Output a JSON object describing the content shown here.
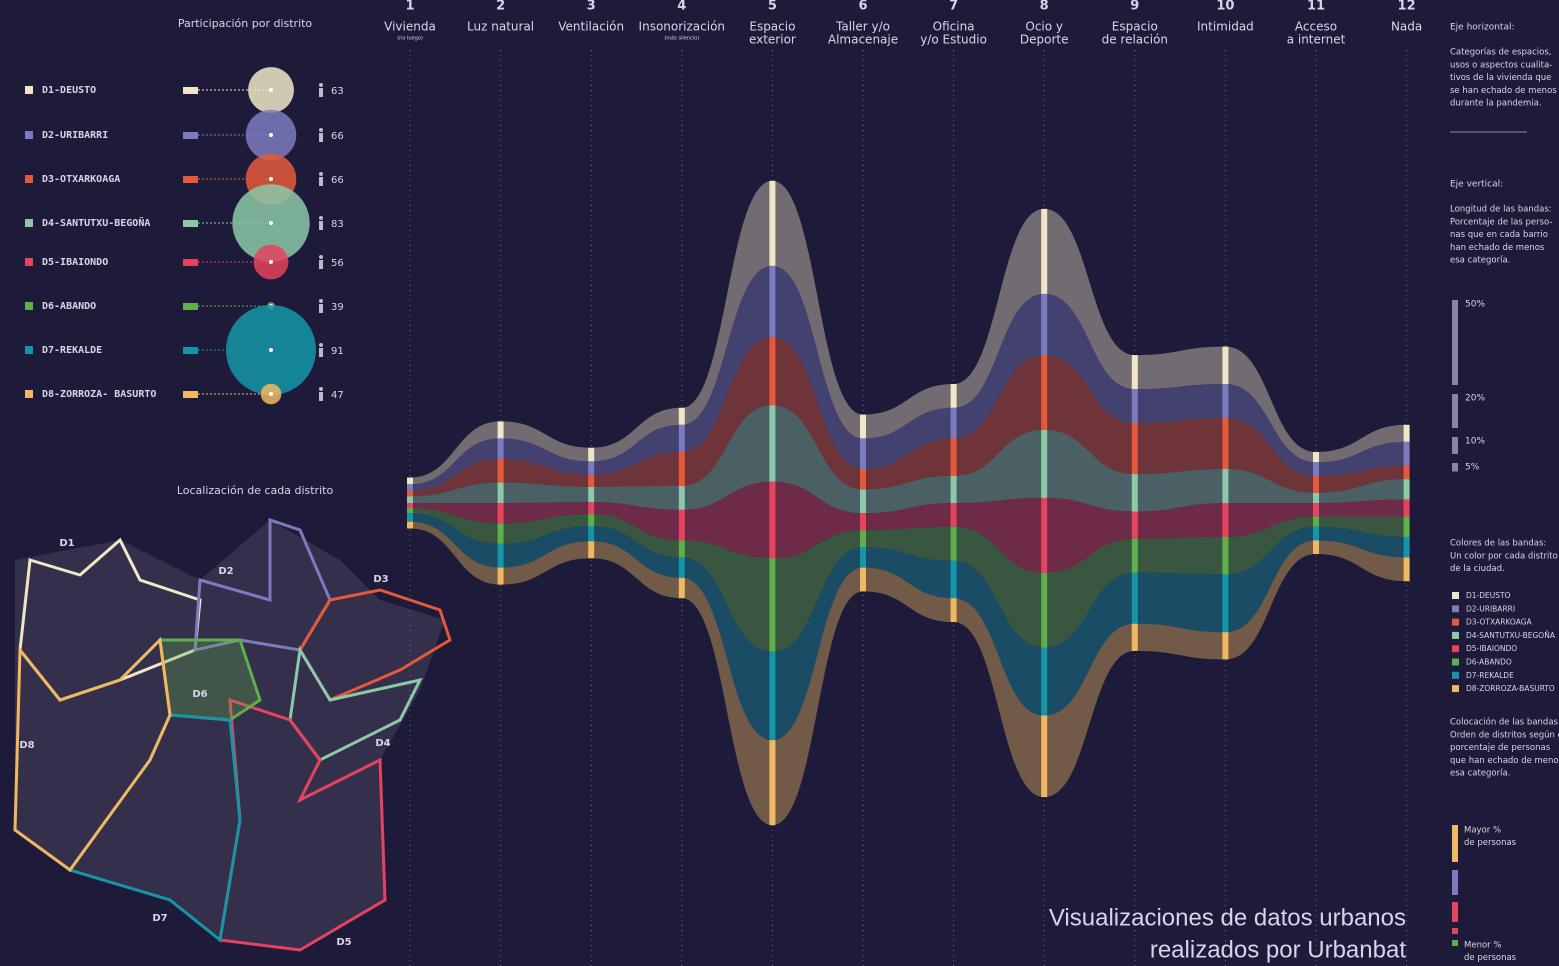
{
  "chart_data": [
    {
      "type": "bubble-list",
      "title": "Participación por distrito",
      "categories": [
        "D1-DEUSTO",
        "D2-URIBARRI",
        "D3-OTXARKOAGA",
        "D4-SANTUTXU-BEGOÑA",
        "D5-IBAIONDO",
        "D6-ABANDO",
        "D7-REKALDE",
        "D8-ZORROZA- BASURTO"
      ],
      "values": [
        63,
        66,
        66,
        83,
        56,
        39,
        91,
        47
      ],
      "colors": [
        "#f1e6c8",
        "#7b7bc0",
        "#e5593a",
        "#8dc9a8",
        "#e5435e",
        "#5fb04b",
        "#1596a8",
        "#f0b860"
      ]
    },
    {
      "type": "band",
      "column_numbers": [
        1,
        2,
        3,
        4,
        5,
        6,
        7,
        8,
        9,
        10,
        11,
        12
      ],
      "categories": [
        [
          "Vivienda"
        ],
        [
          "Luz natural"
        ],
        [
          "Ventilación"
        ],
        [
          "Insonorización"
        ],
        [
          "Espacio",
          "exterior"
        ],
        [
          "Taller y/o",
          "Almacenaje"
        ],
        [
          "Oficina",
          "y/o Estudio"
        ],
        [
          "Ocio y",
          "Deporte"
        ],
        [
          "Espacio",
          "de relación"
        ],
        [
          "Intimidad"
        ],
        [
          "Acceso",
          "a internet"
        ],
        [
          "Nada"
        ]
      ],
      "category_notes": [
        "(no luego)",
        null,
        null,
        "(más silencio)",
        null,
        null,
        null,
        null,
        null,
        null,
        null,
        null
      ],
      "series": [
        {
          "name": "D1-DEUSTO",
          "color": "#f1e6c8",
          "values": [
            4,
            10,
            8,
            10,
            50,
            14,
            14,
            50,
            20,
            22,
            6,
            10
          ]
        },
        {
          "name": "D2-URIBARRI",
          "color": "#7b7bc0",
          "values": [
            4,
            12,
            8,
            16,
            42,
            18,
            18,
            36,
            20,
            20,
            8,
            14
          ]
        },
        {
          "name": "D3-OTXARKOAGA",
          "color": "#e5593a",
          "values": [
            3,
            14,
            7,
            20,
            40,
            12,
            22,
            44,
            30,
            30,
            10,
            8
          ]
        },
        {
          "name": "D4-SANTUTXU-BEGOÑA",
          "color": "#8dc9a8",
          "values": [
            4,
            12,
            9,
            14,
            45,
            14,
            16,
            40,
            22,
            20,
            6,
            12
          ]
        },
        {
          "name": "D5-IBAIONDO",
          "color": "#e5435e",
          "values": [
            3,
            12,
            7,
            18,
            45,
            10,
            14,
            44,
            16,
            20,
            8,
            10
          ]
        },
        {
          "name": "D6-ABANDO",
          "color": "#5fb04b",
          "values": [
            3,
            12,
            7,
            10,
            55,
            10,
            20,
            44,
            20,
            22,
            6,
            12
          ]
        },
        {
          "name": "D7-REKALDE",
          "color": "#1596a8",
          "values": [
            5,
            14,
            9,
            12,
            52,
            12,
            22,
            40,
            30,
            34,
            8,
            12
          ]
        },
        {
          "name": "D8-ZORROZA-BASURTO",
          "color": "#f0b860",
          "values": [
            4,
            10,
            10,
            12,
            50,
            14,
            14,
            48,
            16,
            16,
            8,
            14
          ]
        }
      ],
      "scale_ticks": [
        {
          "value": 50,
          "label": "50%"
        },
        {
          "value": 20,
          "label": "20%"
        },
        {
          "value": 10,
          "label": "10%"
        },
        {
          "value": 5,
          "label": "5%"
        }
      ]
    }
  ],
  "map": {
    "title": "Localización de cada distrito",
    "labels": [
      "D1",
      "D2",
      "D3",
      "D4",
      "D5",
      "D6",
      "D7",
      "D8"
    ]
  },
  "notes": {
    "horizontal_title": "Eje horizontal:",
    "horizontal_text": [
      "Categorías de espacios,",
      "usos o aspectos cualita-",
      "tivos de la vivienda que",
      "se han echado de menos",
      "durante la pandemia."
    ],
    "vertical_title": "Eje vertical:",
    "vertical_text": [
      "Longitud de las bandas:",
      "Porcentaje de las perso-",
      "nas que en cada barrio",
      "han echado de menos",
      "esa categoría."
    ],
    "colors_text": [
      "Colores de las bandas:",
      "Un color por cada distrito",
      "de la ciudad."
    ],
    "order_text": [
      "Colocación de las bandas:",
      "Orden de distritos según el",
      "porcentaje de personas",
      "que han echado de menos",
      "esa categoría."
    ],
    "more": [
      "Mayor %",
      "de personas"
    ],
    "less": [
      "Menor %",
      "de personas"
    ]
  },
  "caption": [
    "Visualizaciones de datos urbanos",
    "realizados por Urbanbat"
  ]
}
